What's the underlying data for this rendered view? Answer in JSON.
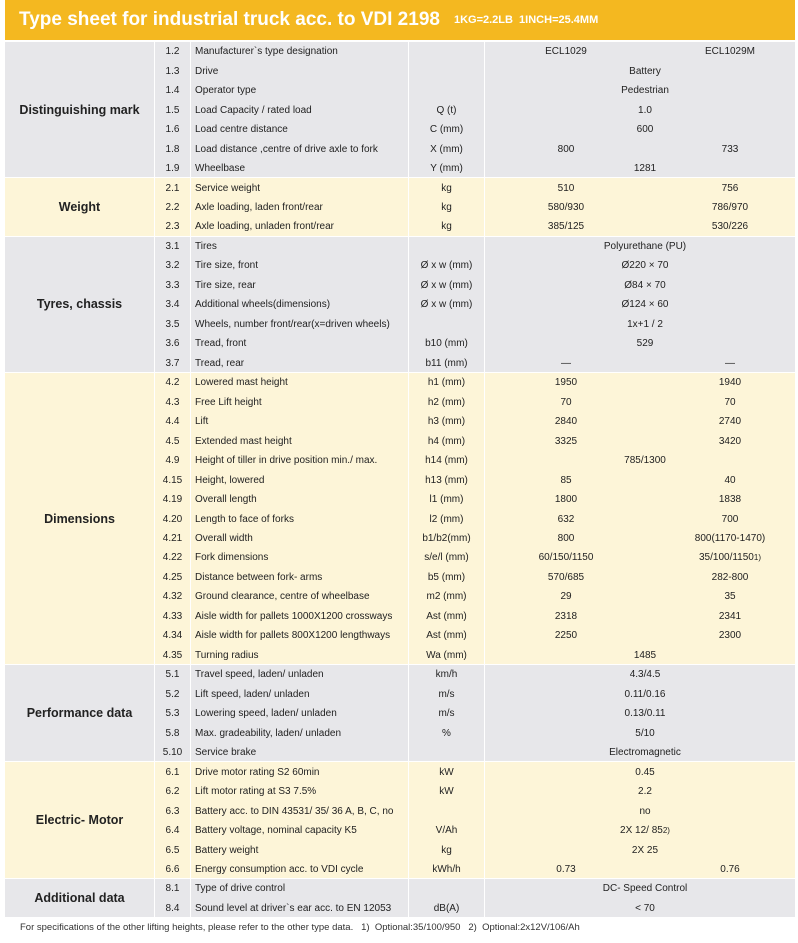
{
  "header": {
    "title": "Type sheet for industrial truck acc. to VDI 2198",
    "subtitle": "1KG=2.2LB  1INCH=25.4MM"
  },
  "sections": [
    {
      "title": "Distinguishing mark",
      "rows": [
        {
          "no": "1.2",
          "item": "Manufacturer`s type designation",
          "values": [
            "ECL1029",
            "ECL1029M"
          ]
        },
        {
          "no": "1.3",
          "item": "Drive",
          "values": [
            "Battery"
          ]
        },
        {
          "no": "1.4",
          "item": "Operator type",
          "values": [
            "Pedestrian"
          ]
        },
        {
          "no": "1.5",
          "item": "Load Capacity / rated load",
          "unit": "Q (t)",
          "values": [
            "1.0"
          ]
        },
        {
          "no": "1.6",
          "item": "Load centre distance",
          "unit": "C (mm)",
          "values": [
            "600"
          ]
        },
        {
          "no": "1.8",
          "item": "Load distance ,centre of drive axle to fork",
          "unit": "X (mm)",
          "values": [
            "800",
            "733"
          ]
        },
        {
          "no": "1.9",
          "item": "Wheelbase",
          "unit": "Y (mm)",
          "values": [
            "1281"
          ]
        }
      ]
    },
    {
      "title": "Weight",
      "rows": [
        {
          "no": "2.1",
          "item": "Service weight",
          "unit": "kg",
          "values": [
            "510",
            "756"
          ]
        },
        {
          "no": "2.2",
          "item": "Axle loading, laden front/rear",
          "unit": "kg",
          "values": [
            "580/930",
            "786/970"
          ]
        },
        {
          "no": "2.3",
          "item": "Axle loading, unladen front/rear",
          "unit": "kg",
          "values": [
            "385/125",
            "530/226"
          ]
        }
      ]
    },
    {
      "title": "Tyres, chassis",
      "rows": [
        {
          "no": "3.1",
          "item": "Tires",
          "values": [
            "Polyurethane (PU)"
          ]
        },
        {
          "no": "3.2",
          "item": "Tire size, front",
          "unit": "Ø x w (mm)",
          "values": [
            "Ø220 × 70"
          ]
        },
        {
          "no": "3.3",
          "item": "Tire size, rear",
          "unit": "Ø x w (mm)",
          "values": [
            "Ø84 × 70"
          ]
        },
        {
          "no": "3.4",
          "item": "Additional wheels(dimensions)",
          "unit": "Ø x w (mm)",
          "values": [
            "Ø124 × 60"
          ]
        },
        {
          "no": "3.5",
          "item": "Wheels, number front/rear(x=driven wheels)",
          "values": [
            "1x+1 / 2"
          ]
        },
        {
          "no": "3.6",
          "item": "Tread, front",
          "unit": "b10 (mm)",
          "values": [
            "529"
          ]
        },
        {
          "no": "3.7",
          "item": "Tread, rear",
          "unit": "b11 (mm)",
          "values": [
            "—",
            "—"
          ]
        }
      ]
    },
    {
      "title": "Dimensions",
      "rows": [
        {
          "no": "4.2",
          "item": "Lowered mast height",
          "unit": "h1 (mm)",
          "values": [
            "1950",
            "1940"
          ]
        },
        {
          "no": "4.3",
          "item": "Free Lift height",
          "unit": "h2 (mm)",
          "values": [
            "70",
            "70"
          ]
        },
        {
          "no": "4.4",
          "item": "Lift",
          "unit": "h3 (mm)",
          "values": [
            "2840",
            "2740"
          ]
        },
        {
          "no": "4.5",
          "item": "Extended mast height",
          "unit": "h4 (mm)",
          "values": [
            "3325",
            "3420"
          ]
        },
        {
          "no": "4.9",
          "item": "Height of tiller in drive position min./ max.",
          "unit": "h14 (mm)",
          "values": [
            "785/1300"
          ]
        },
        {
          "no": "4.15",
          "item": "Height, lowered",
          "unit": "h13 (mm)",
          "values": [
            "85",
            "40"
          ]
        },
        {
          "no": "4.19",
          "item": "Overall length",
          "unit": "l1 (mm)",
          "values": [
            "1800",
            "1838"
          ]
        },
        {
          "no": "4.20",
          "item": "Length to face of forks",
          "unit": "l2 (mm)",
          "values": [
            "632",
            "700"
          ]
        },
        {
          "no": "4.21",
          "item": "Overall width",
          "unit": "b1/b2(mm)",
          "values": [
            "800",
            "800(1170-1470)"
          ]
        },
        {
          "no": "4.22",
          "item": "Fork dimensions",
          "unit": "s/e/l (mm)",
          "values": [
            "60/150/1150",
            "35/100/1150"
          ],
          "note": "1)"
        },
        {
          "no": "4.25",
          "item": "Distance between fork- arms",
          "unit": "b5 (mm)",
          "values": [
            "570/685",
            "282-800"
          ]
        },
        {
          "no": "4.32",
          "item": "Ground clearance, centre of wheelbase",
          "unit": "m2 (mm)",
          "values": [
            "29",
            "35"
          ]
        },
        {
          "no": "4.33",
          "item": "Aisle width for pallets 1000X1200 crossways",
          "unit": "Ast (mm)",
          "values": [
            "2318",
            "2341"
          ]
        },
        {
          "no": "4.34",
          "item": "Aisle width for pallets 800X1200 lengthways",
          "unit": "Ast (mm)",
          "values": [
            "2250",
            "2300"
          ]
        },
        {
          "no": "4.35",
          "item": "Turning radius",
          "unit": "Wa (mm)",
          "values": [
            "1485"
          ]
        }
      ]
    },
    {
      "title": "Performance data",
      "rows": [
        {
          "no": "5.1",
          "item": "Travel speed, laden/ unladen",
          "unit": "km/h",
          "values": [
            "4.3/4.5"
          ]
        },
        {
          "no": "5.2",
          "item": "Lift speed, laden/ unladen",
          "unit": "m/s",
          "values": [
            "0.11/0.16"
          ]
        },
        {
          "no": "5.3",
          "item": "Lowering speed, laden/ unladen",
          "unit": "m/s",
          "values": [
            "0.13/0.11"
          ]
        },
        {
          "no": "5.8",
          "item": "Max. gradeability, laden/ unladen",
          "unit": "%",
          "values": [
            "5/10"
          ]
        },
        {
          "no": "5.10",
          "item": "Service brake",
          "values": [
            "Electromagnetic"
          ]
        }
      ]
    },
    {
      "title": "Electric- Motor",
      "rows": [
        {
          "no": "6.1",
          "item": "Drive motor rating S2 60min",
          "unit": "kW",
          "values": [
            "0.45"
          ]
        },
        {
          "no": "6.2",
          "item": "Lift motor rating at S3 7.5%",
          "unit": "kW",
          "values": [
            "2.2"
          ]
        },
        {
          "no": "6.3",
          "item": "Battery acc. to DIN 43531/ 35/ 36 A, B, C, no",
          "values": [
            "no"
          ]
        },
        {
          "no": "6.4",
          "item": "Battery voltage, nominal capacity K5",
          "unit": "V/Ah",
          "values": [
            "2X 12/ 85"
          ],
          "note": "2)"
        },
        {
          "no": "6.5",
          "item": "Battery  weight",
          "unit": "kg",
          "values": [
            "2X 25"
          ]
        },
        {
          "no": "6.6",
          "item": "Energy consumption acc. to VDI cycle",
          "unit": "kWh/h",
          "values": [
            "0.73",
            "0.76"
          ]
        }
      ]
    },
    {
      "title": "Additional data",
      "rows": [
        {
          "no": "8.1",
          "item": "Type of drive control",
          "values": [
            "DC- Speed Control"
          ]
        },
        {
          "no": "8.4",
          "item": "Sound level at driver`s ear acc. to EN 12053",
          "unit": "dB(A)",
          "values": [
            "< 70"
          ]
        }
      ]
    }
  ],
  "footer": "For specifications of the other lifting heights, please refer to the other type data.   1)  Optional:35/100/950   2)  Optional:2x12V/106/Ah"
}
